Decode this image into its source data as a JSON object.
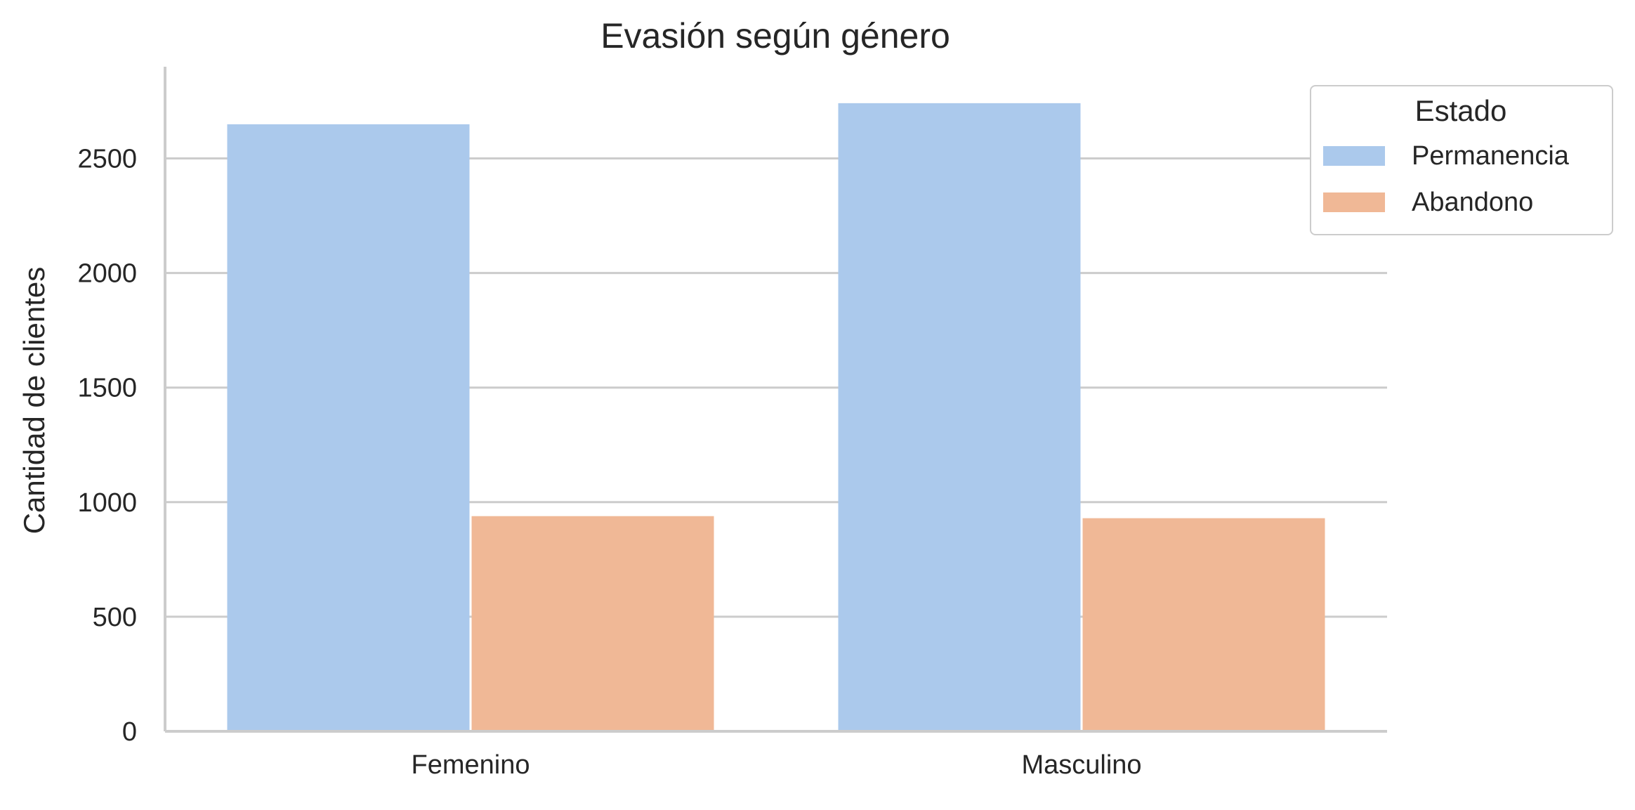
{
  "chart_data": {
    "type": "bar",
    "title": "Evasión según género",
    "xlabel": "",
    "ylabel": "Cantidad de clientes",
    "categories": [
      "Femenino",
      "Masculino"
    ],
    "series": [
      {
        "name": "Permanencia",
        "values": [
          2649,
          2741
        ],
        "color": "#abc9ec"
      },
      {
        "name": "Abandono",
        "values": [
          939,
          930
        ],
        "color": "#f0b896"
      }
    ],
    "ylim": [
      0,
      2900
    ],
    "yticks": [
      0,
      500,
      1000,
      1500,
      2000,
      2500
    ],
    "grid": "horizontal",
    "legend": {
      "title": "Estado",
      "placement": "top-right, outside plot"
    },
    "colors": {
      "grid": "#cccccc",
      "axis": "#cccccc",
      "text": "#262626",
      "background": "#ffffff"
    }
  }
}
